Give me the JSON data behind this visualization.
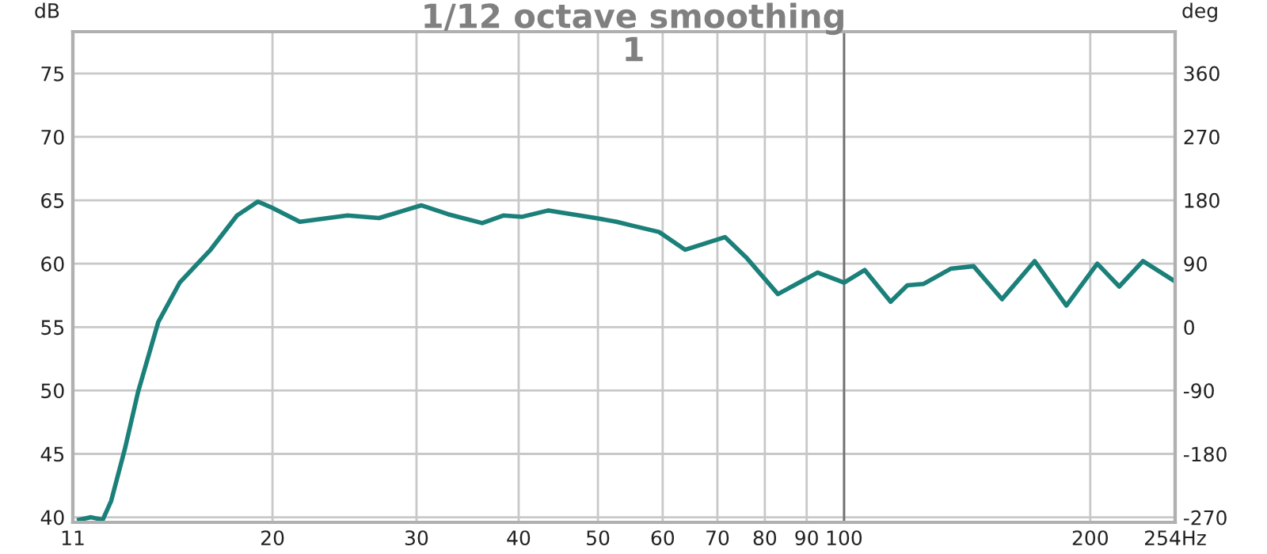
{
  "chart_data": {
    "type": "line",
    "title": "1/12 octave smoothing",
    "subtitle": "1",
    "ylabel": "dB",
    "y2label": "deg",
    "log": "x",
    "grid": true,
    "legend": false,
    "xlim": [
      11.4,
      254
    ],
    "xticks": [
      {
        "value": 11.4,
        "label": "11"
      },
      20,
      30,
      40,
      50,
      60,
      70,
      80,
      90,
      100,
      200,
      {
        "value": 254,
        "label": "254Hz"
      }
    ],
    "ylim": [
      39.6,
      78.3
    ],
    "yticks": [
      40,
      45,
      50,
      55,
      60,
      65,
      70,
      75
    ],
    "y2lim": [
      -277,
      419
    ],
    "y2ticks": [
      -270,
      -180,
      -90,
      0,
      90,
      180,
      270,
      360
    ],
    "ref_lines": [
      {
        "axis": "x",
        "value": 100,
        "color": "#707070"
      }
    ],
    "series": [
      {
        "color": "#1b8079",
        "x": [
          11.6,
          12.0,
          12.4,
          12.7,
          13.2,
          13.7,
          14.5,
          15.4,
          16.8,
          18.1,
          19.2,
          20.0,
          21.6,
          24.7,
          27.0,
          30.4,
          32.8,
          36.1,
          38.3,
          40.4,
          43.5,
          49.7,
          52.7,
          55.1,
          59.4,
          63.9,
          71.5,
          75.9,
          83.0,
          92.8,
          100,
          106,
          114,
          119.5,
          125,
          135,
          144,
          156,
          171,
          187,
          204,
          217,
          232,
          254
        ],
        "values": [
          39.8,
          40.0,
          39.8,
          41.3,
          45.4,
          49.9,
          55.4,
          58.5,
          61.1,
          63.8,
          64.9,
          64.4,
          63.3,
          63.8,
          63.6,
          64.6,
          63.9,
          63.2,
          63.8,
          63.7,
          64.2,
          63.6,
          63.3,
          63.0,
          62.5,
          61.1,
          62.1,
          60.5,
          57.6,
          59.3,
          58.5,
          59.5,
          57.0,
          58.3,
          58.4,
          59.6,
          59.8,
          57.2,
          60.2,
          56.7,
          60.0,
          58.2,
          60.2,
          58.6
        ]
      }
    ]
  }
}
